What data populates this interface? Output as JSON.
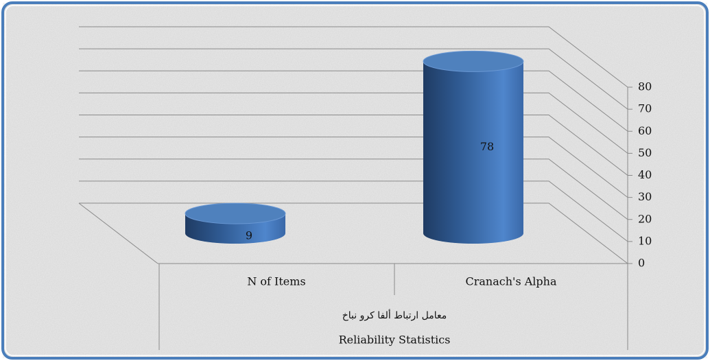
{
  "chart_data": {
    "type": "bar3d",
    "categories": [
      "N of Items",
      "Cranach's Alpha"
    ],
    "values": [
      9,
      78
    ],
    "color": "#4f81bd",
    "category_groups": [
      "معامل ارتباط ألفا كرو نباخ",
      "Reliability Statistics"
    ],
    "ylim": [
      0,
      80
    ],
    "yticks": [
      0,
      10,
      20,
      30,
      40,
      50,
      60,
      70,
      80
    ],
    "grid": true
  }
}
